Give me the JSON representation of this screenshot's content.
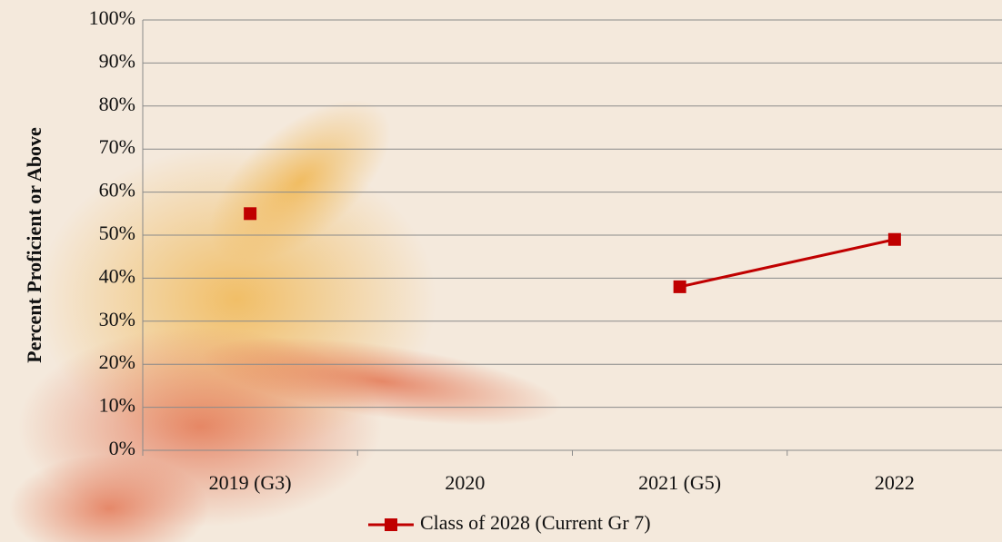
{
  "chart_data": {
    "type": "line",
    "y_label": "Percent Proficient or Above",
    "categories": [
      "2019 (G3)",
      "2020",
      "2021 (G5)",
      "2022"
    ],
    "series": [
      {
        "name": "Class of 2028 (Current Gr 7)",
        "color": "#c00000",
        "values": [
          55,
          null,
          38,
          49
        ]
      }
    ],
    "ylim": [
      0,
      100
    ],
    "yticks": [
      {
        "value": 0,
        "label": "0%"
      },
      {
        "value": 10,
        "label": "10%"
      },
      {
        "value": 20,
        "label": "20%"
      },
      {
        "value": 30,
        "label": "30%"
      },
      {
        "value": 40,
        "label": "40%"
      },
      {
        "value": 50,
        "label": "50%"
      },
      {
        "value": 60,
        "label": "60%"
      },
      {
        "value": 70,
        "label": "70%"
      },
      {
        "value": 80,
        "label": "80%"
      },
      {
        "value": 90,
        "label": "90%"
      },
      {
        "value": 100,
        "label": "100%"
      }
    ],
    "grid": true,
    "legend": "bottom"
  }
}
